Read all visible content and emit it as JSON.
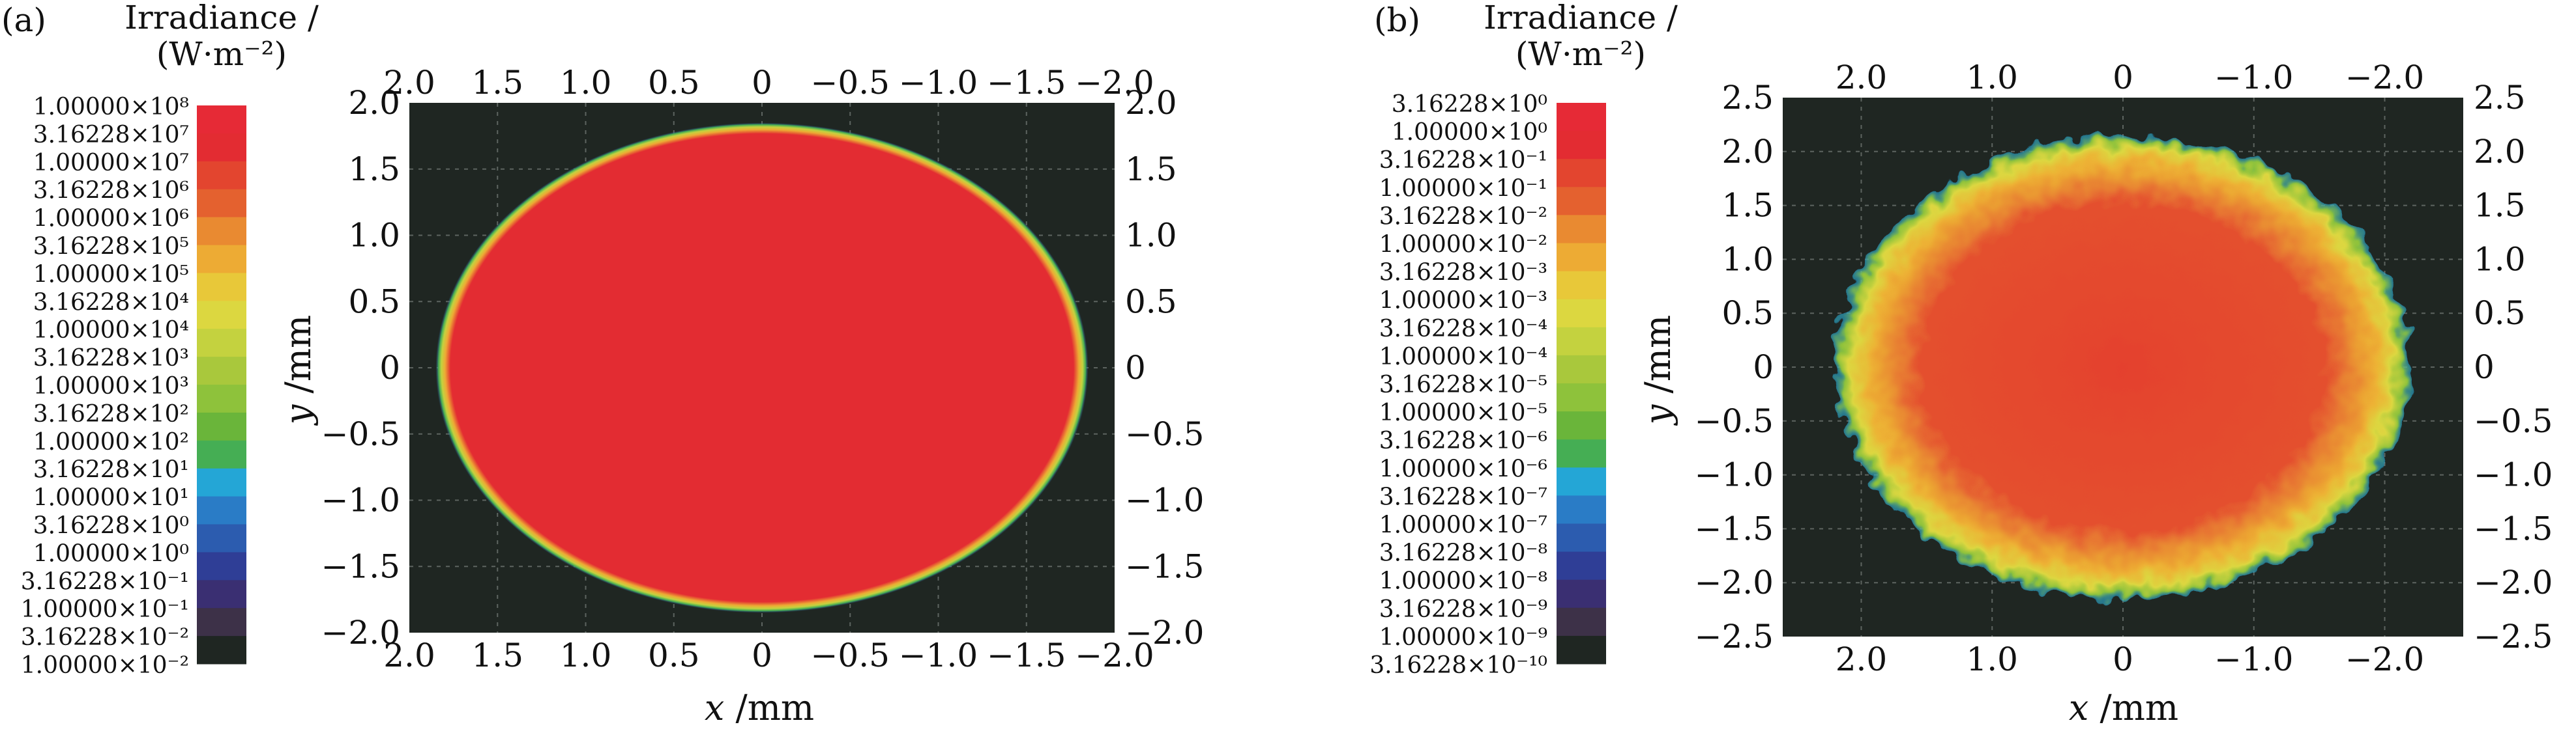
{
  "colors": {
    "background_plot": "#1f2622",
    "grid": "#5d6460",
    "scale": [
      "#1f2622",
      "#3d3148",
      "#3a2f72",
      "#2f3e96",
      "#2c5caf",
      "#2a7cc6",
      "#24a6d6",
      "#45ae54",
      "#6ab53a",
      "#8ec23b",
      "#a9c83c",
      "#c4d23f",
      "#dcd740",
      "#e8c839",
      "#edab34",
      "#e98a31",
      "#e4612f",
      "#e3452f",
      "#e32c32",
      "#e62a36"
    ]
  },
  "chart_data": [
    {
      "panel_label": "(a)",
      "type": "heatmap",
      "colorbar_title_line1": "Irradiance /",
      "colorbar_title_line2": "(W·m⁻²)",
      "colorbar_levels": [
        "1.00000×10⁸",
        "3.16228×10⁷",
        "1.00000×10⁷",
        "3.16228×10⁶",
        "1.00000×10⁶",
        "3.16228×10⁵",
        "1.00000×10⁵",
        "3.16228×10⁴",
        "1.00000×10⁴",
        "3.16228×10³",
        "1.00000×10³",
        "3.16228×10²",
        "1.00000×10²",
        "3.16228×10¹",
        "1.00000×10¹",
        "3.16228×10⁰",
        "1.00000×10⁰",
        "3.16228×10⁻¹",
        "1.00000×10⁻¹",
        "3.16228×10⁻²",
        "1.00000×10⁻²"
      ],
      "xlabel_var": "x",
      "xlabel_unit": " /mm",
      "ylabel_var": "y",
      "ylabel_unit": " /mm",
      "xlim": [
        2.0,
        -2.0
      ],
      "ylim": [
        -2.0,
        2.0
      ],
      "x_ticks": [
        2.0,
        1.5,
        1.0,
        0.5,
        0,
        -0.5,
        -1.0,
        -1.5,
        -2.0
      ],
      "x_tick_labels": [
        "2.0",
        "1.5",
        "1.0",
        "0.5",
        "0",
        "−0.5",
        "−1.0",
        "−1.5",
        "−2.0"
      ],
      "y_ticks": [
        2.0,
        1.5,
        1.0,
        0.5,
        0,
        -0.5,
        -1.0,
        -1.5,
        -2.0
      ],
      "y_tick_labels": [
        "2.0",
        "1.5",
        "1.0",
        "0.5",
        "0",
        "−0.5",
        "−1.0",
        "−1.5",
        "−2.0"
      ],
      "spot": {
        "shape": "ellipse",
        "x_radius_mm": 1.85,
        "y_radius_mm": 1.85,
        "peak_level_index": 0,
        "rough_edge": false
      }
    },
    {
      "panel_label": "(b)",
      "type": "heatmap",
      "colorbar_title_line1": "Irradiance /",
      "colorbar_title_line2": "(W·m⁻²)",
      "colorbar_levels": [
        "3.16228×10⁰",
        "1.00000×10⁰",
        "3.16228×10⁻¹",
        "1.00000×10⁻¹",
        "3.16228×10⁻²",
        "1.00000×10⁻²",
        "3.16228×10⁻³",
        "1.00000×10⁻³",
        "3.16228×10⁻⁴",
        "1.00000×10⁻⁴",
        "3.16228×10⁻⁵",
        "1.00000×10⁻⁵",
        "3.16228×10⁻⁶",
        "1.00000×10⁻⁶",
        "3.16228×10⁻⁷",
        "1.00000×10⁻⁷",
        "3.16228×10⁻⁸",
        "1.00000×10⁻⁸",
        "3.16228×10⁻⁹",
        "1.00000×10⁻⁹",
        "3.16228×10⁻¹⁰"
      ],
      "xlabel_var": "x",
      "xlabel_unit": " /mm",
      "ylabel_var": "y",
      "ylabel_unit": " /mm",
      "xlim": [
        2.6,
        -2.6
      ],
      "ylim": [
        -2.5,
        2.5
      ],
      "x_ticks": [
        2.0,
        1.0,
        0,
        -1.0,
        -2.0
      ],
      "x_tick_labels": [
        "2.0",
        "1.0",
        "0",
        "−1.0",
        "−2.0"
      ],
      "y_ticks": [
        2.5,
        2.0,
        1.5,
        1.0,
        0.5,
        0,
        -0.5,
        -1.0,
        -1.5,
        -2.0,
        -2.5
      ],
      "y_tick_labels": [
        "2.5",
        "2.0",
        "1.5",
        "1.0",
        "0.5",
        "0",
        "−0.5",
        "−1.0",
        "−1.5",
        "−2.0",
        "−2.5"
      ],
      "spot": {
        "shape": "ellipse",
        "x_radius_mm": 2.2,
        "y_radius_mm": 2.15,
        "peak_level_index": 1,
        "rough_edge": true
      }
    }
  ]
}
